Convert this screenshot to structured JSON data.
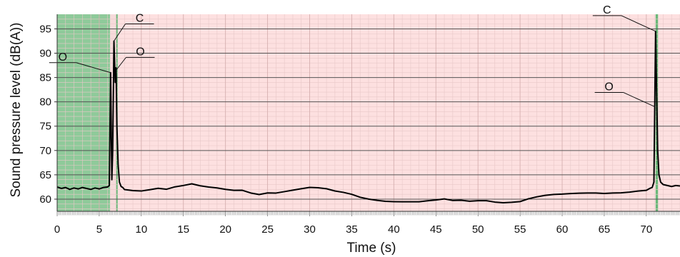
{
  "chart_data": {
    "type": "line",
    "xlabel": "Time (s)",
    "ylabel": "Sound pressure level (dB(A))",
    "xlim": [
      0,
      74
    ],
    "ylim": [
      57.5,
      98
    ],
    "x_ticks": [
      0,
      5,
      10,
      15,
      20,
      25,
      30,
      35,
      40,
      45,
      50,
      55,
      60,
      65,
      70
    ],
    "y_ticks": [
      60,
      65,
      70,
      75,
      80,
      85,
      90,
      95
    ],
    "grid": true,
    "background_regions": [
      {
        "x0": 0,
        "x1": 6.3,
        "color": "#8fca9a"
      },
      {
        "x0": 6.3,
        "x1": 7.0,
        "color": "#f6dada"
      },
      {
        "x0": 7.0,
        "x1": 7.2,
        "color": "#6cb87a"
      },
      {
        "x0": 7.2,
        "x1": 71.1,
        "color": "#fde0e0"
      },
      {
        "x0": 71.1,
        "x1": 71.4,
        "color": "#6cb87a"
      },
      {
        "x0": 71.4,
        "x1": 74,
        "color": "#fde0e0"
      }
    ],
    "series": [
      {
        "color": "#000000",
        "x": [
          0,
          0.5,
          1,
          1.5,
          2,
          2.5,
          3,
          3.5,
          4,
          4.5,
          5,
          5.5,
          6,
          6.2,
          6.35,
          6.5,
          6.6,
          6.75,
          6.9,
          7.0,
          7.1,
          7.25,
          7.4,
          7.6,
          7.8,
          8.0,
          9,
          10,
          11,
          12,
          13,
          14,
          15,
          16,
          17,
          18,
          19,
          20,
          21,
          22,
          23,
          24,
          25,
          26,
          27,
          28,
          29,
          30,
          31,
          32,
          33,
          34,
          35,
          36,
          37,
          38,
          39,
          40,
          41,
          42,
          43,
          44,
          45,
          46,
          47,
          48,
          49,
          50,
          51,
          52,
          53,
          54,
          55,
          56,
          57,
          58,
          59,
          60,
          61,
          62,
          63,
          64,
          65,
          66,
          67,
          68,
          69,
          70,
          70.4,
          70.7,
          70.9,
          71.0,
          71.1,
          71.2,
          71.35,
          71.5,
          71.7,
          72.0,
          72.5,
          73,
          73.5,
          74
        ],
        "y": [
          62.5,
          62.2,
          62.4,
          62.0,
          62.3,
          62.1,
          62.4,
          62.2,
          62.0,
          62.3,
          62.1,
          62.4,
          62.5,
          62.8,
          86.0,
          64.0,
          70.0,
          92.5,
          84.0,
          87.0,
          75.0,
          67.0,
          63.5,
          62.6,
          62.4,
          62.2,
          62.0,
          61.9,
          62.1,
          62.3,
          62.0,
          62.4,
          62.6,
          62.9,
          62.5,
          62.3,
          62.2,
          62.0,
          61.9,
          62.0,
          61.5,
          61.2,
          61.5,
          61.4,
          61.6,
          61.8,
          62.0,
          62.2,
          62.1,
          61.9,
          61.5,
          61.3,
          61.0,
          60.5,
          60.2,
          60.0,
          59.8,
          59.7,
          59.6,
          59.5,
          59.4,
          59.5,
          59.6,
          59.8,
          59.5,
          59.6,
          59.5,
          59.7,
          59.8,
          59.6,
          59.5,
          59.6,
          59.7,
          60.2,
          60.5,
          60.7,
          60.8,
          60.8,
          60.9,
          61.0,
          61.1,
          61.2,
          61.2,
          61.4,
          61.5,
          61.7,
          61.9,
          62.0,
          62.2,
          62.4,
          63.5,
          79.0,
          94.5,
          84.0,
          70.0,
          65.0,
          63.5,
          63.0,
          62.8,
          62.6,
          62.8,
          62.7
        ]
      }
    ],
    "annotations": [
      {
        "text": "O",
        "x": 6.35,
        "y": 86.0
      },
      {
        "text": "C",
        "x": 6.75,
        "y": 92.5
      },
      {
        "text": "O",
        "x": 7.0,
        "y": 86.5
      },
      {
        "text": "C",
        "x": 71.1,
        "y": 94.5
      },
      {
        "text": "O",
        "x": 71.0,
        "y": 79.0
      }
    ]
  }
}
